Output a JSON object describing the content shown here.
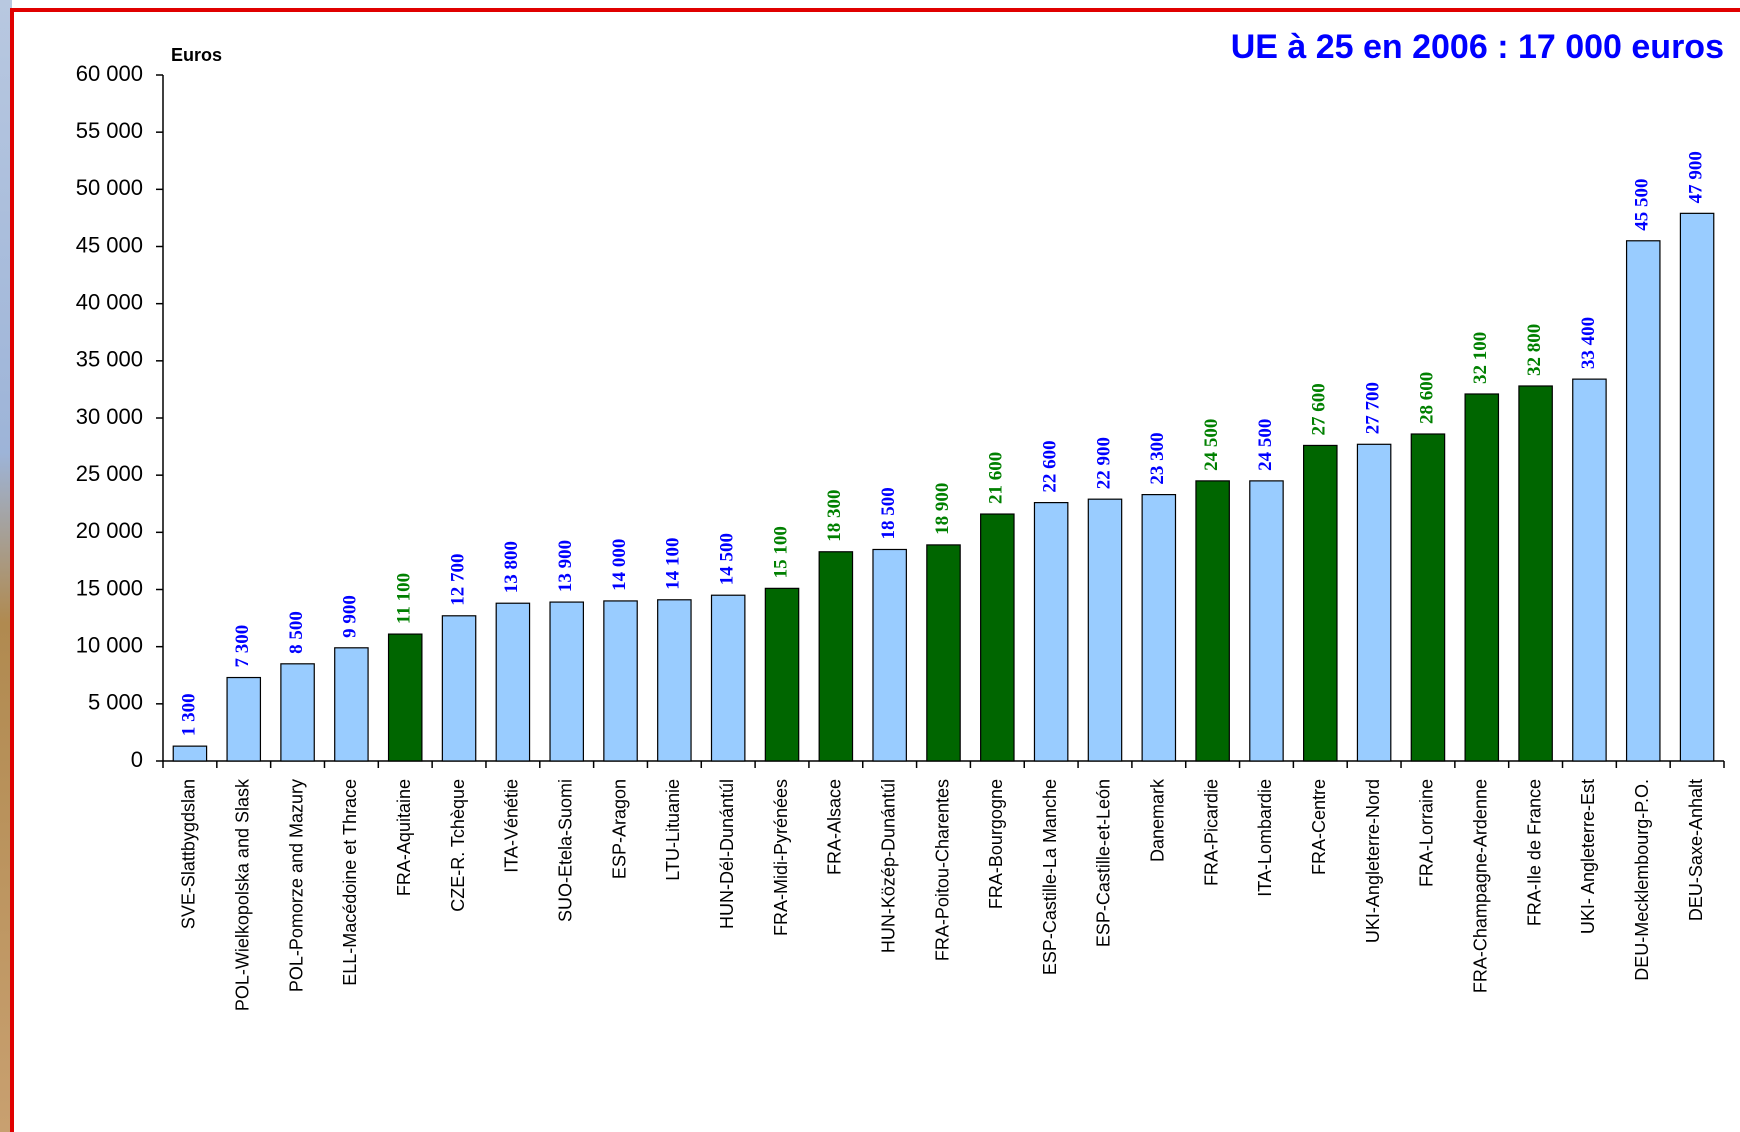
{
  "chart_data": {
    "type": "bar",
    "title": "UE à 25 en 2006 : 17 000 euros",
    "y_label": "Euros",
    "categories": [
      "SVE-Slattbygdslan",
      "POL-Wielkopolska and Slask",
      "POL-Pomorze and Mazury",
      "ELL-Macédoine et Thrace",
      "FRA-Aquitaine",
      "CZE-R. Tchèque",
      "ITA-Vénétie",
      "SUO-Etela-Suomi",
      "ESP-Aragon",
      "LTU-Lituanie",
      "HUN-Dél-Dunántúl",
      "FRA-Midi-Pyrénées",
      "FRA-Alsace",
      "HUN-Közép-Dunántúl",
      "FRA-Poitou-Charentes",
      "FRA-Bourgogne",
      "ESP-Castille-La Manche",
      "ESP-Castille-et-León",
      "Danemark",
      "FRA-Picardie",
      "ITA-Lombardie",
      "FRA-Centre",
      "UKI-Angleterre-Nord",
      "FRA-Lorraine",
      "FRA-Champagne-Ardenne",
      "FRA-Ile de France",
      "UKI- Angleterre-Est",
      "DEU-Mecklembourg-P.O.",
      "DEU-Saxe-Anhalt"
    ],
    "values": [
      1300,
      7300,
      8500,
      9900,
      11100,
      12700,
      13800,
      13900,
      14000,
      14100,
      14500,
      15100,
      18300,
      18500,
      18900,
      21600,
      22600,
      22900,
      23300,
      24500,
      24500,
      27600,
      27700,
      28600,
      32100,
      32800,
      33400,
      45500,
      47900
    ],
    "value_labels": [
      "1 300",
      "7 300",
      "8 500",
      "9 900",
      "11 100",
      "12 700",
      "13 800",
      "13 900",
      "14 000",
      "14 100",
      "14 500",
      "15 100",
      "18 300",
      "18 500",
      "18 900",
      "21 600",
      "22 600",
      "22 900",
      "23 300",
      "24 500",
      "24 500",
      "27 600",
      "27 700",
      "28 600",
      "32 100",
      "32 800",
      "33 400",
      "45 500",
      "47 900"
    ],
    "colors": [
      "#99ccff",
      "#99ccff",
      "#99ccff",
      "#99ccff",
      "#006600",
      "#99ccff",
      "#99ccff",
      "#99ccff",
      "#99ccff",
      "#99ccff",
      "#99ccff",
      "#006600",
      "#006600",
      "#99ccff",
      "#006600",
      "#006600",
      "#99ccff",
      "#99ccff",
      "#99ccff",
      "#006600",
      "#99ccff",
      "#006600",
      "#99ccff",
      "#006600",
      "#006600",
      "#006600",
      "#99ccff",
      "#99ccff",
      "#99ccff"
    ],
    "ylim": [
      0,
      60000
    ],
    "yticks": [
      0,
      {
        "value": 5000,
        "label": "5 000"
      },
      {
        "value": 10000,
        "label": "10 000"
      },
      {
        "value": 15000,
        "label": "15 000"
      },
      {
        "value": 20000,
        "label": "20 000"
      },
      {
        "value": 25000,
        "label": "25 000"
      },
      {
        "value": 30000,
        "label": "30 000"
      },
      {
        "value": 35000,
        "label": "35 000"
      },
      {
        "value": 40000,
        "label": "40 000"
      },
      {
        "value": 45000,
        "label": "45 000"
      },
      {
        "value": 50000,
        "label": "50 000"
      },
      {
        "value": 55000,
        "label": "55 000"
      },
      {
        "value": 60000,
        "label": "60 000"
      }
    ],
    "grid": false
  }
}
